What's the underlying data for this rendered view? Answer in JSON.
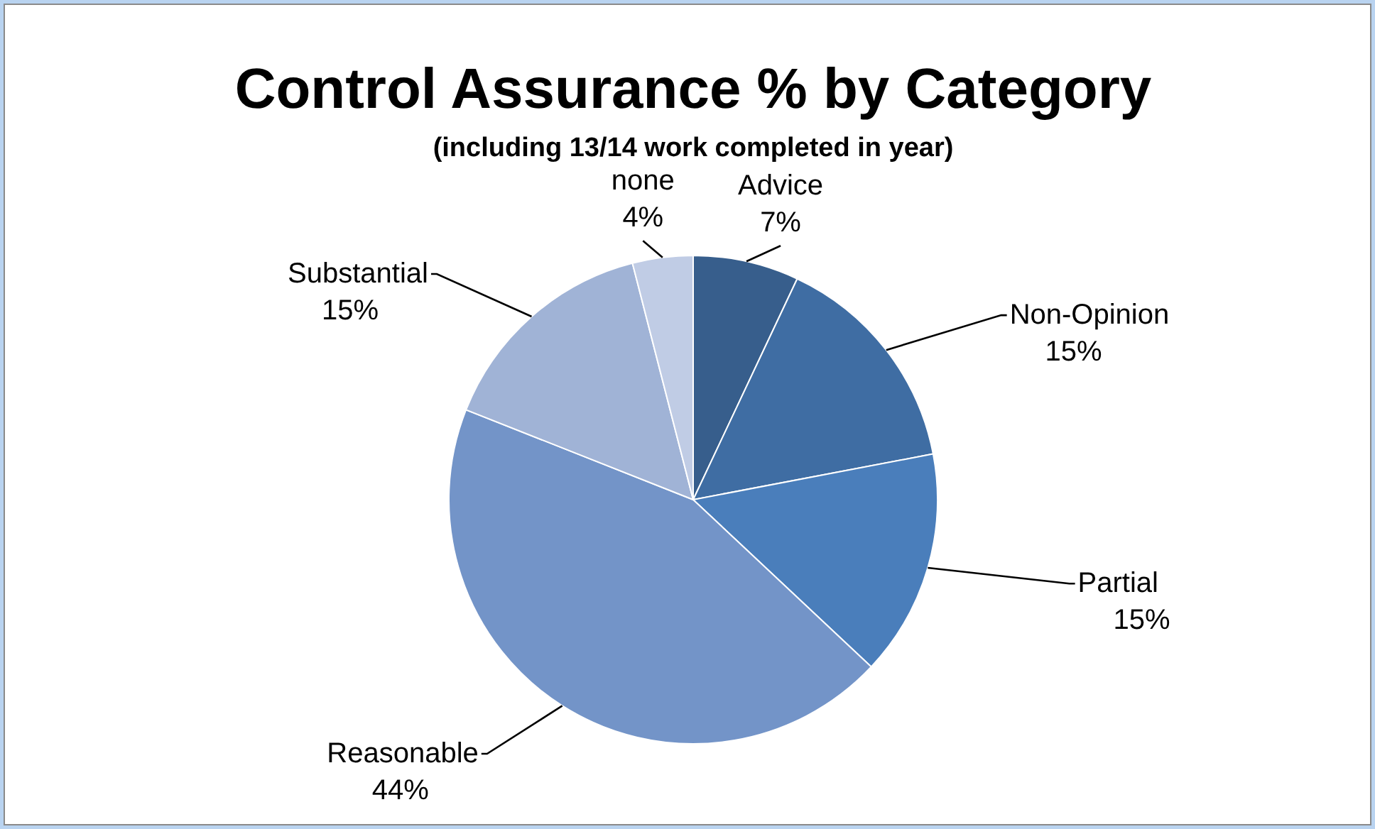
{
  "chart_data": {
    "type": "pie",
    "title": "Control Assurance % by Category",
    "subtitle": "(including 13/14 work completed in year)",
    "categories": [
      "Advice",
      "Non-Opinion",
      "Partial",
      "Reasonable",
      "Substantial",
      "none"
    ],
    "values": [
      7,
      15,
      15,
      44,
      15,
      4
    ],
    "colors": [
      "#375e8c",
      "#3f6da3",
      "#4a7ebb",
      "#7394c8",
      "#a0b3d6",
      "#c0cce5"
    ],
    "value_labels": [
      "7%",
      "15%",
      "15%",
      "44%",
      "15%",
      "4%"
    ],
    "legend": false
  }
}
